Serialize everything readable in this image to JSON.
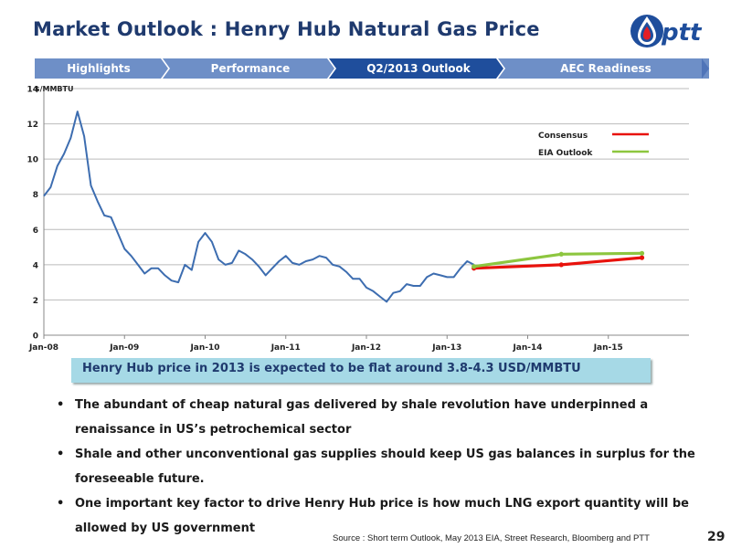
{
  "title": "Market Outlook : Henry Hub Natural Gas Price",
  "logo_text": "ptt",
  "nav": {
    "tabs": [
      {
        "label": "Highlights",
        "active": false
      },
      {
        "label": "Performance",
        "active": false
      },
      {
        "label": "Q2/2013 Outlook",
        "active": true
      },
      {
        "label": "AEC Readiness",
        "active": false
      }
    ]
  },
  "chart_data": {
    "type": "line",
    "ylabel": "$/MMBTU",
    "ylim": [
      0,
      14
    ],
    "yticks": [
      0,
      2,
      4,
      6,
      8,
      10,
      12,
      14
    ],
    "x_tick_labels": [
      "Jan-08",
      "Jan-09",
      "Jan-10",
      "Jan-11",
      "Jan-12",
      "Jan-13",
      "Jan-14",
      "Jan-15"
    ],
    "xlim": [
      "2008-01",
      "2016-01"
    ],
    "grid": true,
    "legend_position": "upper-right",
    "series": [
      {
        "name": "Henry Hub",
        "color": "#3d6db0",
        "x": [
          "2008-01",
          "2008-02",
          "2008-03",
          "2008-04",
          "2008-05",
          "2008-06",
          "2008-07",
          "2008-08",
          "2008-09",
          "2008-10",
          "2008-11",
          "2008-12",
          "2009-01",
          "2009-02",
          "2009-03",
          "2009-04",
          "2009-05",
          "2009-06",
          "2009-07",
          "2009-08",
          "2009-09",
          "2009-10",
          "2009-11",
          "2009-12",
          "2010-01",
          "2010-02",
          "2010-03",
          "2010-04",
          "2010-05",
          "2010-06",
          "2010-07",
          "2010-08",
          "2010-09",
          "2010-10",
          "2010-11",
          "2010-12",
          "2011-01",
          "2011-02",
          "2011-03",
          "2011-04",
          "2011-05",
          "2011-06",
          "2011-07",
          "2011-08",
          "2011-09",
          "2011-10",
          "2011-11",
          "2011-12",
          "2012-01",
          "2012-02",
          "2012-03",
          "2012-04",
          "2012-05",
          "2012-06",
          "2012-07",
          "2012-08",
          "2012-09",
          "2012-10",
          "2012-11",
          "2012-12",
          "2013-01",
          "2013-02",
          "2013-03",
          "2013-04",
          "2013-05"
        ],
        "values": [
          7.9,
          8.4,
          9.6,
          10.3,
          11.2,
          12.7,
          11.3,
          8.5,
          7.6,
          6.8,
          6.7,
          5.8,
          4.9,
          4.5,
          4.0,
          3.5,
          3.8,
          3.8,
          3.4,
          3.1,
          3.0,
          4.0,
          3.7,
          5.3,
          5.8,
          5.3,
          4.3,
          4.0,
          4.1,
          4.8,
          4.6,
          4.3,
          3.9,
          3.4,
          3.8,
          4.2,
          4.5,
          4.1,
          4.0,
          4.2,
          4.3,
          4.5,
          4.4,
          4.0,
          3.9,
          3.6,
          3.2,
          3.2,
          2.7,
          2.5,
          2.2,
          1.9,
          2.4,
          2.5,
          2.9,
          2.8,
          2.8,
          3.3,
          3.5,
          3.4,
          3.3,
          3.3,
          3.8,
          4.2,
          4.0
        ]
      },
      {
        "name": "Consensus",
        "color": "#e8120c",
        "x": [
          "2013-05",
          "2014-06",
          "2015-06"
        ],
        "values": [
          3.8,
          4.0,
          4.4
        ]
      },
      {
        "name": "EIA Outlook",
        "color": "#8dc63f",
        "x": [
          "2013-05",
          "2014-06",
          "2015-06"
        ],
        "values": [
          3.9,
          4.6,
          4.65
        ]
      }
    ]
  },
  "callout": "Henry Hub price in 2013 is expected to be flat around 3.8-4.3 USD/MMBTU",
  "bullets": [
    "The abundant of cheap natural gas delivered by shale revolution have underpinned a renaissance in US’s petrochemical sector",
    "Shale and other unconventional gas supplies should keep US gas balances in surplus for the foreseeable future.",
    "One important key factor to drive Henry Hub price is how much LNG export quantity will be allowed by US government"
  ],
  "source": "Source : Short term Outlook, May 2013 EIA, Street Research, Bloomberg and PTT",
  "page_number": "29"
}
